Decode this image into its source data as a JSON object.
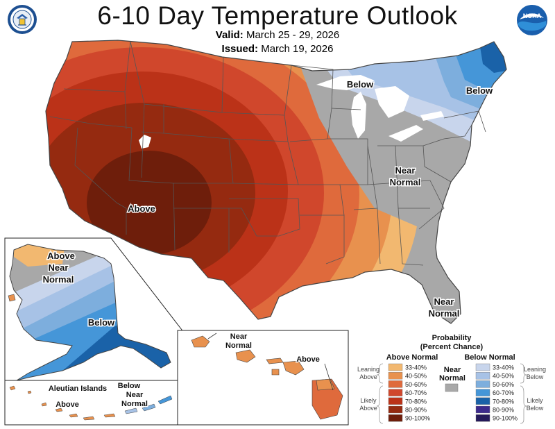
{
  "header": {
    "title": "6-10 Day Temperature Outlook",
    "valid_label": "Valid:",
    "valid_range": "March 25 - 29, 2026",
    "issued_label": "Issued:",
    "issued_date": "March 19, 2026"
  },
  "logos": {
    "left": "US Department of Commerce seal",
    "right": "NOAA",
    "left_icon": "doc-seal-icon",
    "right_icon": "noaa-logo-icon"
  },
  "conus_labels": {
    "above": "Above",
    "below_great_lakes": "Below",
    "below_new_england": "Below",
    "near_normal_center": [
      "Near",
      "Normal"
    ],
    "near_normal_florida": [
      "Near",
      "Normal"
    ]
  },
  "alaska_labels": {
    "above": "Above",
    "near_normal": [
      "Near",
      "Normal"
    ],
    "below": "Below"
  },
  "aleutian_labels": {
    "title": "Aleutian Islands",
    "above": "Above",
    "below": "Below",
    "near_normal": [
      "Near",
      "Normal"
    ]
  },
  "hawaii_labels": {
    "near_normal": [
      "Near",
      "Normal"
    ],
    "above": "Above"
  },
  "legend": {
    "title_line1": "Probability",
    "title_line2": "(Percent Chance)",
    "above_header": "Above Normal",
    "below_header": "Below Normal",
    "near_header": [
      "Near",
      "Normal"
    ],
    "leaning_above": [
      "Leaning",
      "Above"
    ],
    "likely_above": [
      "Likely",
      "Above"
    ],
    "leaning_below": [
      "Leaning",
      "Below"
    ],
    "likely_below": [
      "Likely",
      "Below"
    ],
    "above_items": [
      {
        "label": "33-40%",
        "color": "#f2b870"
      },
      {
        "label": "40-50%",
        "color": "#e8914e"
      },
      {
        "label": "50-60%",
        "color": "#df6a3c"
      },
      {
        "label": "60-70%",
        "color": "#d0472c"
      },
      {
        "label": "70-80%",
        "color": "#bb3218"
      },
      {
        "label": "80-90%",
        "color": "#952a10"
      },
      {
        "label": "90-100%",
        "color": "#6e1e0b"
      }
    ],
    "below_items": [
      {
        "label": "33-40%",
        "color": "#c8d5ec"
      },
      {
        "label": "40-50%",
        "color": "#a7c2e6"
      },
      {
        "label": "50-60%",
        "color": "#7daedd"
      },
      {
        "label": "60-70%",
        "color": "#4596d8"
      },
      {
        "label": "70-80%",
        "color": "#1a62a8"
      },
      {
        "label": "80-90%",
        "color": "#3c2a8c"
      },
      {
        "label": "90-100%",
        "color": "#24195a"
      }
    ],
    "near_color": "#a8a8a8"
  }
}
